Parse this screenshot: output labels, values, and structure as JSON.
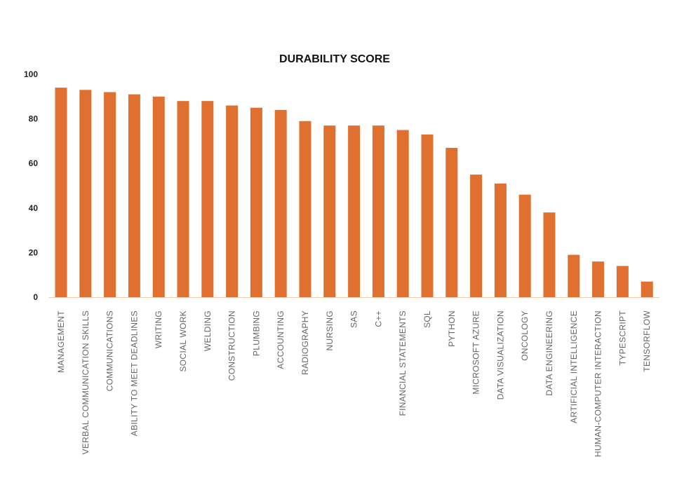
{
  "chart_data": {
    "type": "bar",
    "title": "DURABILITY SCORE",
    "xlabel": "",
    "ylabel": "",
    "ylim": [
      0,
      100
    ],
    "yticks": [
      "100",
      "80",
      "60",
      "40",
      "20",
      "0"
    ],
    "grid": false,
    "bar_color": "#E07030",
    "categories": [
      "MANAGEMENT",
      "VERBAL COMMUNICATION SKILLS",
      "COMMUNICATIONS",
      "ABILITY TO MEET DEADLINES",
      "WRITING",
      "SOCIAL WORK",
      "WELDING",
      "CONSTRUCTION",
      "PLUMBING",
      "ACCOUNTING",
      "RADIOGRAPHY",
      "NURSING",
      "SAS",
      "C++",
      "FINANCIAL STATEMENTS",
      "SQL",
      "PYTHON",
      "MICROSOFT AZURE",
      "DATA VISUALIZATION",
      "ONCOLOGY",
      "DATA ENGINEERING",
      "ARTIFICIAL INTELLIGENCE",
      "HUMAN-COMPUTER INTERACTION",
      "TYPESCRIPT",
      "TENSORFLOW"
    ],
    "values": [
      94,
      93,
      92,
      91,
      90,
      88,
      88,
      86,
      85,
      84,
      79,
      77,
      77,
      77,
      75,
      73,
      67,
      55,
      51,
      46,
      38,
      19,
      16,
      14,
      7
    ]
  }
}
